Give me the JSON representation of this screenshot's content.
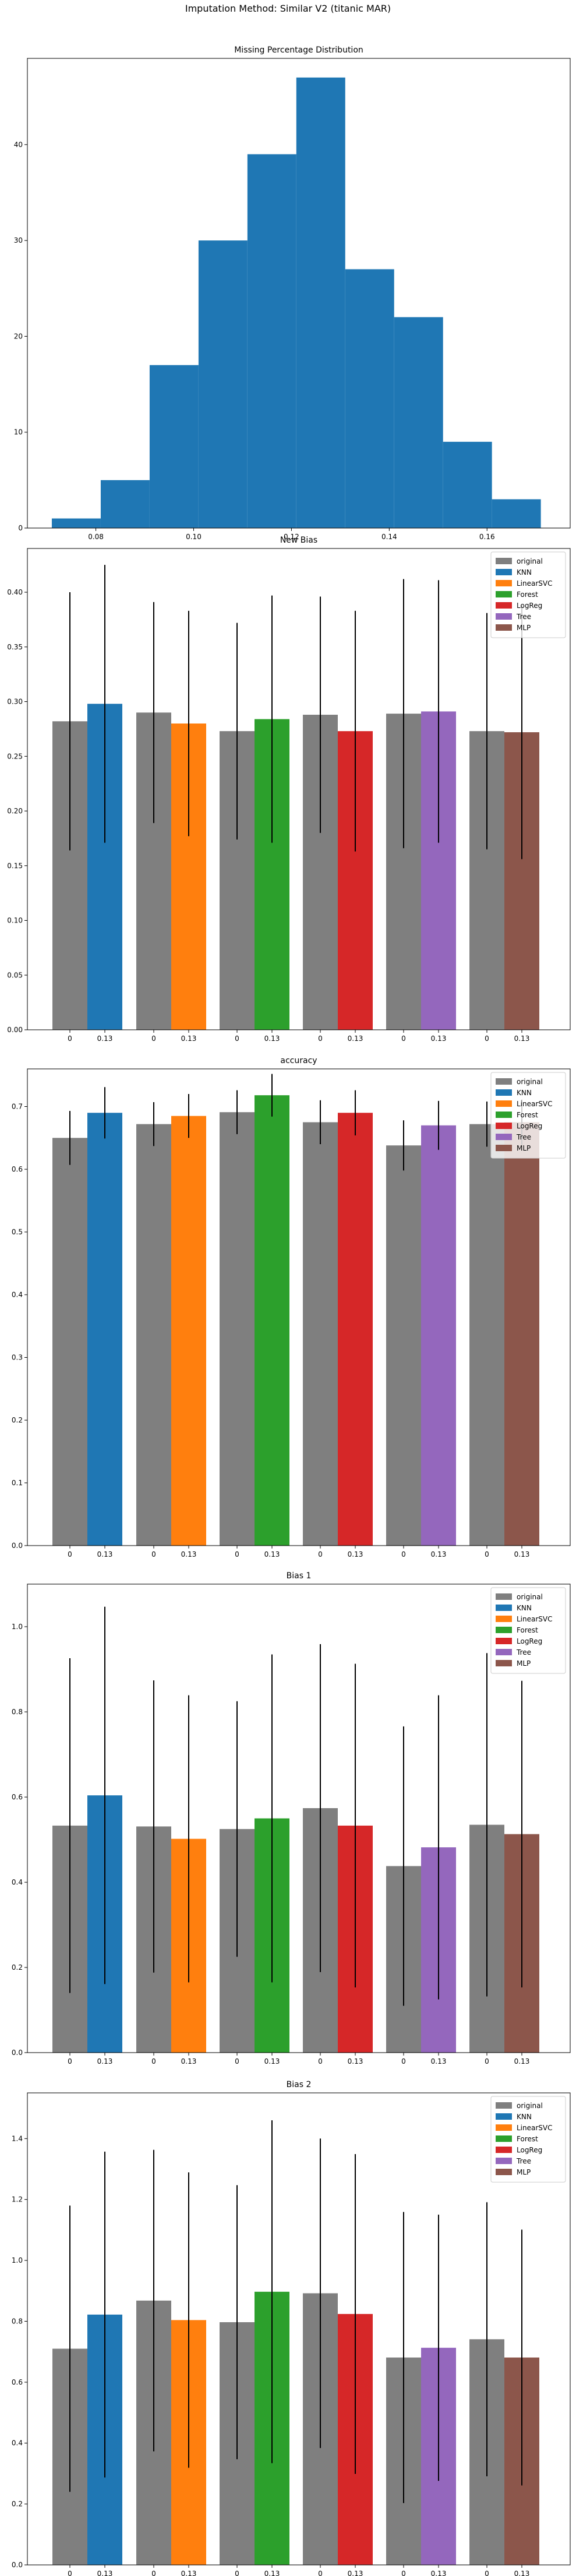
{
  "figure": {
    "suptitle": "Imputation Method: Similar V2 (titanic MAR)"
  },
  "chart_data": [
    {
      "type": "bar",
      "subtype": "histogram",
      "title": "Missing Percentage Distribution",
      "xlim": [
        0.066,
        0.177
      ],
      "ylim": [
        0,
        49
      ],
      "xticks": [
        0.08,
        0.1,
        0.12,
        0.14,
        0.16
      ],
      "xtick_labels": [
        "0.08",
        "0.10",
        "0.12",
        "0.14",
        "0.16"
      ],
      "yticks": [
        0,
        10,
        20,
        30,
        40
      ],
      "ytick_labels": [
        "0",
        "10",
        "20",
        "30",
        "40"
      ],
      "bin_edges": [
        0.071,
        0.081,
        0.091,
        0.101,
        0.111,
        0.121,
        0.131,
        0.141,
        0.151,
        0.161,
        0.171
      ],
      "counts": [
        1,
        5,
        17,
        30,
        39,
        47,
        27,
        22,
        9,
        3
      ],
      "color": "#1f77b4",
      "grid": false
    },
    {
      "type": "bar",
      "title": "New Bias",
      "ylim": [
        0,
        0.44
      ],
      "yticks": [
        0.0,
        0.05,
        0.1,
        0.15,
        0.2,
        0.25,
        0.3,
        0.35,
        0.4
      ],
      "ytick_labels": [
        "0.00",
        "0.05",
        "0.10",
        "0.15",
        "0.20",
        "0.25",
        "0.30",
        "0.35",
        "0.40"
      ],
      "groups": [
        {
          "x_labels": [
            "0",
            "0.13"
          ],
          "original": {
            "value": 0.282,
            "err": 0.118
          },
          "imputed": {
            "value": 0.298,
            "err": 0.127
          }
        },
        {
          "x_labels": [
            "0",
            "0.13"
          ],
          "original": {
            "value": 0.29,
            "err": 0.101
          },
          "imputed": {
            "value": 0.28,
            "err": 0.103
          }
        },
        {
          "x_labels": [
            "0",
            "0.13"
          ],
          "original": {
            "value": 0.273,
            "err": 0.099
          },
          "imputed": {
            "value": 0.284,
            "err": 0.113
          }
        },
        {
          "x_labels": [
            "0",
            "0.13"
          ],
          "original": {
            "value": 0.288,
            "err": 0.108
          },
          "imputed": {
            "value": 0.273,
            "err": 0.11
          }
        },
        {
          "x_labels": [
            "0",
            "0.13"
          ],
          "original": {
            "value": 0.289,
            "err": 0.123
          },
          "imputed": {
            "value": 0.291,
            "err": 0.12
          }
        },
        {
          "x_labels": [
            "0",
            "0.13"
          ],
          "original": {
            "value": 0.273,
            "err": 0.108
          },
          "imputed": {
            "value": 0.272,
            "err": 0.116
          }
        }
      ]
    },
    {
      "type": "bar",
      "title": "accuracy",
      "ylim": [
        0,
        0.76
      ],
      "yticks": [
        0.0,
        0.1,
        0.2,
        0.3,
        0.4,
        0.5,
        0.6,
        0.7
      ],
      "ytick_labels": [
        "0.0",
        "0.1",
        "0.2",
        "0.3",
        "0.4",
        "0.5",
        "0.6",
        "0.7"
      ],
      "groups": [
        {
          "x_labels": [
            "0",
            "0.13"
          ],
          "original": {
            "value": 0.65,
            "err": 0.043
          },
          "imputed": {
            "value": 0.69,
            "err": 0.041
          }
        },
        {
          "x_labels": [
            "0",
            "0.13"
          ],
          "original": {
            "value": 0.672,
            "err": 0.035
          },
          "imputed": {
            "value": 0.685,
            "err": 0.035
          }
        },
        {
          "x_labels": [
            "0",
            "0.13"
          ],
          "original": {
            "value": 0.691,
            "err": 0.035
          },
          "imputed": {
            "value": 0.718,
            "err": 0.034
          }
        },
        {
          "x_labels": [
            "0",
            "0.13"
          ],
          "original": {
            "value": 0.675,
            "err": 0.035
          },
          "imputed": {
            "value": 0.69,
            "err": 0.036
          }
        },
        {
          "x_labels": [
            "0",
            "0.13"
          ],
          "original": {
            "value": 0.638,
            "err": 0.04
          },
          "imputed": {
            "value": 0.67,
            "err": 0.039
          }
        },
        {
          "x_labels": [
            "0",
            "0.13"
          ],
          "original": {
            "value": 0.672,
            "err": 0.036
          },
          "imputed": {
            "value": 0.675,
            "err": 0.036
          }
        }
      ]
    },
    {
      "type": "bar",
      "title": "Bias 1",
      "ylim": [
        0,
        1.1
      ],
      "yticks": [
        0.0,
        0.2,
        0.4,
        0.6,
        0.8,
        1.0
      ],
      "ytick_labels": [
        "0.0",
        "0.2",
        "0.4",
        "0.6",
        "0.8",
        "1.0"
      ],
      "groups": [
        {
          "x_labels": [
            "0",
            "0.13"
          ],
          "original": {
            "value": 0.533,
            "err": 0.393
          },
          "imputed": {
            "value": 0.604,
            "err": 0.443
          }
        },
        {
          "x_labels": [
            "0",
            "0.13"
          ],
          "original": {
            "value": 0.531,
            "err": 0.343
          },
          "imputed": {
            "value": 0.502,
            "err": 0.337
          }
        },
        {
          "x_labels": [
            "0",
            "0.13"
          ],
          "original": {
            "value": 0.525,
            "err": 0.3
          },
          "imputed": {
            "value": 0.55,
            "err": 0.385
          }
        },
        {
          "x_labels": [
            "0",
            "0.13"
          ],
          "original": {
            "value": 0.574,
            "err": 0.385
          },
          "imputed": {
            "value": 0.533,
            "err": 0.38
          }
        },
        {
          "x_labels": [
            "0",
            "0.13"
          ],
          "original": {
            "value": 0.438,
            "err": 0.328
          },
          "imputed": {
            "value": 0.482,
            "err": 0.357
          }
        },
        {
          "x_labels": [
            "0",
            "0.13"
          ],
          "original": {
            "value": 0.535,
            "err": 0.403
          },
          "imputed": {
            "value": 0.513,
            "err": 0.36
          }
        }
      ]
    },
    {
      "type": "bar",
      "title": "Bias 2",
      "ylim": [
        0,
        1.55
      ],
      "yticks": [
        0.0,
        0.2,
        0.4,
        0.6,
        0.8,
        1.0,
        1.2,
        1.4
      ],
      "ytick_labels": [
        "0.0",
        "0.2",
        "0.4",
        "0.6",
        "0.8",
        "1.0",
        "1.2",
        "1.4"
      ],
      "groups": [
        {
          "x_labels": [
            "0",
            "0.13"
          ],
          "original": {
            "value": 0.71,
            "err": 0.47
          },
          "imputed": {
            "value": 0.822,
            "err": 0.535
          }
        },
        {
          "x_labels": [
            "0",
            "0.13"
          ],
          "original": {
            "value": 0.868,
            "err": 0.495
          },
          "imputed": {
            "value": 0.804,
            "err": 0.485
          }
        },
        {
          "x_labels": [
            "0",
            "0.13"
          ],
          "original": {
            "value": 0.797,
            "err": 0.45
          },
          "imputed": {
            "value": 0.897,
            "err": 0.563
          }
        },
        {
          "x_labels": [
            "0",
            "0.13"
          ],
          "original": {
            "value": 0.892,
            "err": 0.508
          },
          "imputed": {
            "value": 0.824,
            "err": 0.525
          }
        },
        {
          "x_labels": [
            "0",
            "0.13"
          ],
          "original": {
            "value": 0.681,
            "err": 0.478
          },
          "imputed": {
            "value": 0.713,
            "err": 0.437
          }
        },
        {
          "x_labels": [
            "0",
            "0.13"
          ],
          "original": {
            "value": 0.741,
            "err": 0.45
          },
          "imputed": {
            "value": 0.681,
            "err": 0.42
          }
        }
      ]
    }
  ],
  "legend": {
    "placement": "top-right",
    "entries": [
      {
        "label": "original",
        "color": "#7f7f7f"
      },
      {
        "label": "KNN",
        "color": "#1f77b4"
      },
      {
        "label": "LinearSVC",
        "color": "#ff7f0e"
      },
      {
        "label": "Forest",
        "color": "#2ca02c"
      },
      {
        "label": "LogReg",
        "color": "#d62728"
      },
      {
        "label": "Tree",
        "color": "#9467bd"
      },
      {
        "label": "MLP",
        "color": "#8c564b"
      }
    ]
  },
  "colors": {
    "original": "#7f7f7f",
    "methods": [
      "#1f77b4",
      "#ff7f0e",
      "#2ca02c",
      "#d62728",
      "#9467bd",
      "#8c564b"
    ],
    "histogram": "#1f77b4",
    "errorbar": "#000000"
  }
}
